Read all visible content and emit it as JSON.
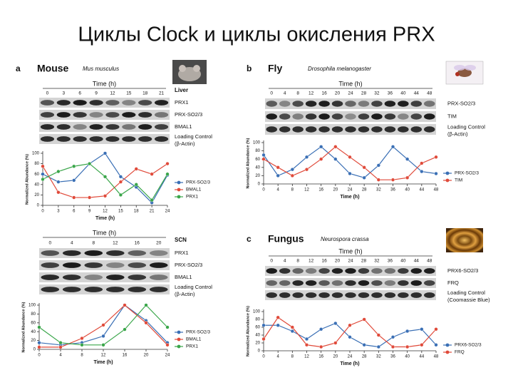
{
  "title": "Циклы Clock и циклы окисления PRX",
  "panels": [
    {
      "letter": "a",
      "organism": "Mouse",
      "species": "Mus musculus",
      "sections": [
        {
          "tissue": "Liver",
          "time_label": "Time (h)",
          "times": [
            0,
            3,
            6,
            9,
            12,
            15,
            18,
            21
          ],
          "rows": [
            {
              "label": "PRX1"
            },
            {
              "label": "PRX-SO2/3"
            },
            {
              "label": "BMAL1"
            },
            {
              "label": "Loading Control",
              "note": "(β-Actin)"
            }
          ],
          "chart": {
            "type": "line",
            "x_label": "Time (h)",
            "y_label": "Normalized Abundance (%)",
            "x": [
              0,
              3,
              6,
              9,
              12,
              15,
              18,
              21,
              24
            ],
            "xlim": [
              0,
              24
            ],
            "xticks": [
              0,
              3,
              6,
              9,
              12,
              15,
              18,
              21,
              24
            ],
            "ylim": [
              0,
              100
            ],
            "yticks": [
              0,
              20,
              40,
              60,
              80,
              100
            ],
            "series": [
              {
                "name": "PRX-SO2/3",
                "color": "#3a6fb5",
                "values": [
                  60,
                  45,
                  48,
                  80,
                  100,
                  55,
                  35,
                  5,
                  58
                ]
              },
              {
                "name": "BMAL1",
                "color": "#e04a3a",
                "values": [
                  75,
                  25,
                  15,
                  15,
                  18,
                  45,
                  70,
                  60,
                  80
                ]
              },
              {
                "name": "PRX1",
                "color": "#3aa64a",
                "values": [
                  50,
                  65,
                  75,
                  80,
                  55,
                  20,
                  40,
                  10,
                  60
                ]
              }
            ]
          }
        },
        {
          "tissue": "SCN",
          "time_label": "Time (h)",
          "times": [
            0,
            4,
            8,
            12,
            16,
            20
          ],
          "rows": [
            {
              "label": "PRX1"
            },
            {
              "label": "PRX-SO2/3"
            },
            {
              "label": "BMAL1"
            },
            {
              "label": "Loading Control",
              "note": "(β-Actin)"
            }
          ],
          "chart": {
            "type": "line",
            "x_label": "Time (h)",
            "y_label": "Normalized Abundance (%)",
            "x": [
              0,
              4,
              8,
              12,
              16,
              20,
              24
            ],
            "xlim": [
              0,
              24
            ],
            "xticks": [
              0,
              4,
              8,
              12,
              16,
              20,
              24
            ],
            "ylim": [
              0,
              100
            ],
            "yticks": [
              0,
              20,
              40,
              60,
              80,
              100
            ],
            "series": [
              {
                "name": "PRX-SO2/3",
                "color": "#3a6fb5",
                "values": [
                  15,
                  10,
                  15,
                  30,
                  100,
                  65,
                  15
                ]
              },
              {
                "name": "BMAL1",
                "color": "#e04a3a",
                "values": [
                  5,
                  5,
                  25,
                  55,
                  100,
                  60,
                  10
                ]
              },
              {
                "name": "PRX1",
                "color": "#3aa64a",
                "values": [
                  50,
                  15,
                  10,
                  10,
                  45,
                  100,
                  50
                ]
              }
            ]
          }
        }
      ]
    },
    {
      "letter": "b",
      "organism": "Fly",
      "species": "Drosophila melanogaster",
      "sections": [
        {
          "time_label": "Time (h)",
          "times": [
            0,
            4,
            8,
            12,
            16,
            20,
            24,
            28,
            32,
            36,
            40,
            44,
            48
          ],
          "rows": [
            {
              "label": "PRX-SO2/3"
            },
            {
              "label": "TIM"
            },
            {
              "label": "Loading Control",
              "note": "(β-Actin)"
            }
          ],
          "chart": {
            "type": "line",
            "x_label": "Time (h)",
            "y_label": "Normalized Abundance (%)",
            "x": [
              0,
              4,
              8,
              12,
              16,
              20,
              24,
              28,
              32,
              36,
              40,
              44,
              48
            ],
            "xlim": [
              0,
              48
            ],
            "xticks": [
              0,
              4,
              8,
              12,
              16,
              20,
              24,
              28,
              32,
              36,
              40,
              44,
              48
            ],
            "ylim": [
              0,
              100
            ],
            "yticks": [
              0,
              20,
              40,
              60,
              80,
              100
            ],
            "series": [
              {
                "name": "PRX-SO2/3",
                "color": "#3a6fb5",
                "values": [
                  70,
                  20,
                  35,
                  65,
                  90,
                  60,
                  25,
                  15,
                  45,
                  90,
                  60,
                  30,
                  25
                ]
              },
              {
                "name": "TIM",
                "color": "#e04a3a",
                "values": [
                  60,
                  40,
                  20,
                  35,
                  60,
                  90,
                  65,
                  40,
                  10,
                  10,
                  15,
                  50,
                  65
                ]
              }
            ]
          }
        }
      ]
    },
    {
      "letter": "c",
      "organism": "Fungus",
      "species": "Neurospora crassa",
      "sections": [
        {
          "time_label": "Time (h)",
          "times": [
            0,
            4,
            8,
            12,
            16,
            20,
            24,
            28,
            32,
            36,
            40,
            44,
            48
          ],
          "rows": [
            {
              "label": "PRX6-SO2/3"
            },
            {
              "label": "FRQ"
            },
            {
              "label": "Loading Control",
              "note": "(Coomassie Blue)"
            }
          ],
          "chart": {
            "type": "line",
            "x_label": "Time (h)",
            "y_label": "Normalized Abundance (%)",
            "x": [
              0,
              4,
              8,
              12,
              16,
              20,
              24,
              28,
              32,
              36,
              40,
              44,
              48
            ],
            "xlim": [
              0,
              48
            ],
            "xticks": [
              0,
              4,
              8,
              12,
              16,
              20,
              24,
              28,
              32,
              36,
              40,
              44,
              48
            ],
            "ylim": [
              0,
              100
            ],
            "yticks": [
              0,
              20,
              40,
              60,
              80,
              100
            ],
            "series": [
              {
                "name": "PRX6-SO2/3",
                "color": "#3a6fb5",
                "values": [
                  65,
                  65,
                  50,
                  30,
                  55,
                  70,
                  35,
                  15,
                  10,
                  35,
                  50,
                  55,
                  15
                ]
              },
              {
                "name": "FRQ",
                "color": "#e04a3a",
                "values": [
                  30,
                  85,
                  60,
                  15,
                  10,
                  20,
                  65,
                  80,
                  40,
                  10,
                  10,
                  15,
                  55
                ]
              }
            ]
          }
        }
      ]
    }
  ]
}
